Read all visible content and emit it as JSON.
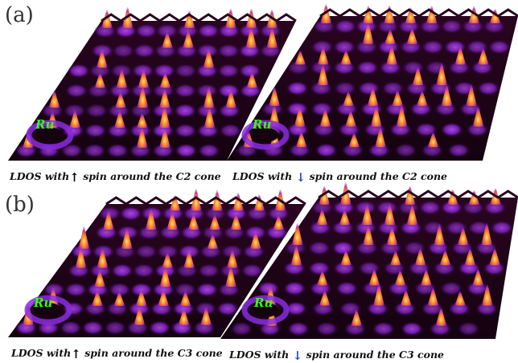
{
  "panels": [
    {
      "label": "(a)",
      "maps": [
        {
          "spin": "up",
          "caption_pre": "LDOS with",
          "arrow": "↑",
          "caption_post": "spin around the C2 cone",
          "atom": "Ru",
          "colors": {
            "arrow": "#000000"
          }
        },
        {
          "spin": "down",
          "caption_pre": "LDOS with",
          "arrow": "↓",
          "caption_post": "spin around the C2 cone",
          "atom": "Ru",
          "colors": {
            "arrow": "#1a3fd6"
          }
        }
      ]
    },
    {
      "label": "(b)",
      "maps": [
        {
          "spin": "up",
          "caption_pre": "LDOS with",
          "arrow": "↑",
          "caption_post": "spin around the C3 cone",
          "atom": "Ru",
          "colors": {
            "arrow": "#000000"
          }
        },
        {
          "spin": "down",
          "caption_pre": "LDOS with",
          "arrow": "↓",
          "caption_post": "spin around the C3 cone",
          "atom": "Ru",
          "colors": {
            "arrow": "#1a3fd6"
          }
        }
      ]
    }
  ],
  "colors": {
    "surface_dark": "#1c0414",
    "surface_mid": "#4a0a6a",
    "surface_purple": "#8a2be2",
    "peak_orange": "#ff8a1e",
    "peak_yellow": "#ffe08a",
    "ru_label": "#39ff14"
  }
}
